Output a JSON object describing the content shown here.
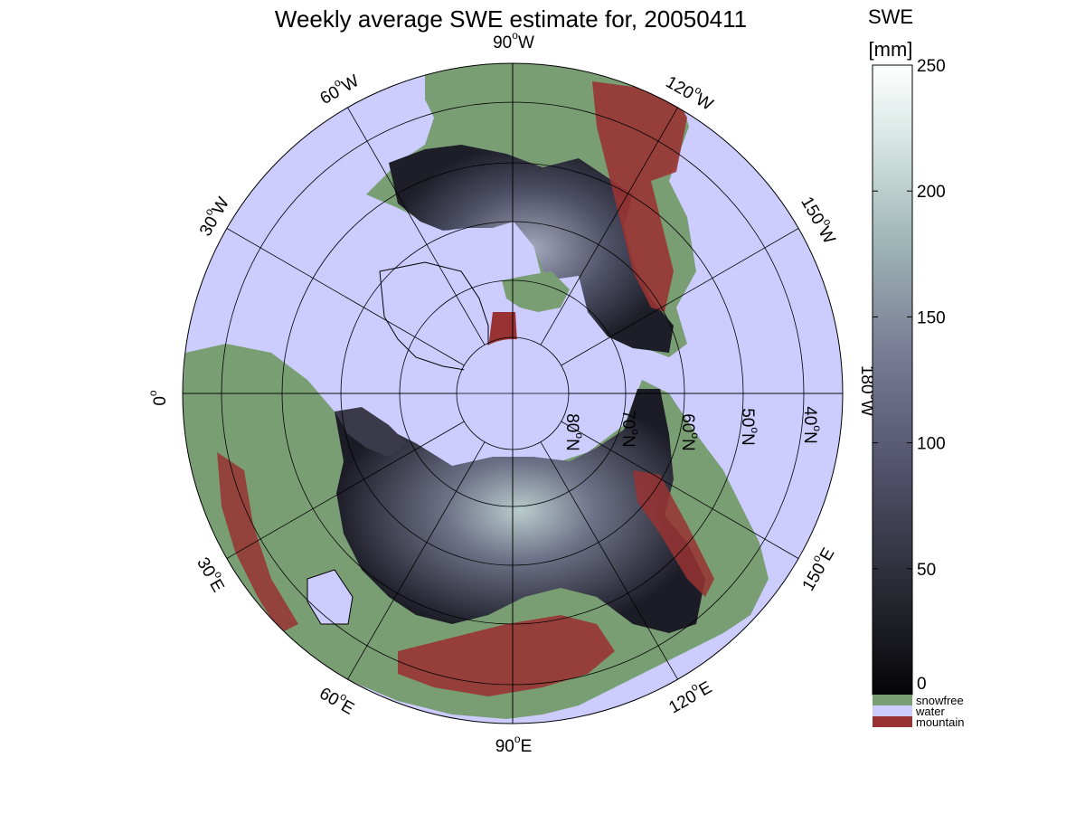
{
  "title": "Weekly average SWE estimate for, 20050411",
  "colors": {
    "water": "#ccccff",
    "snowfree": "#7a9e74",
    "mountain": "#993333",
    "coast": "#000000"
  },
  "longitude_labels": [
    {
      "id": "lon-90w",
      "base": "90",
      "suffix": "W"
    },
    {
      "id": "lon-120w",
      "base": "120",
      "suffix": "W"
    },
    {
      "id": "lon-150w",
      "base": "150",
      "suffix": "W"
    },
    {
      "id": "lon-180w",
      "base": "180",
      "suffix": "W"
    },
    {
      "id": "lon-150e",
      "base": "150",
      "suffix": "E"
    },
    {
      "id": "lon-120e",
      "base": "120",
      "suffix": "E"
    },
    {
      "id": "lon-90e",
      "base": "90",
      "suffix": "E"
    },
    {
      "id": "lon-60e",
      "base": "60",
      "suffix": "E"
    },
    {
      "id": "lon-30e",
      "base": "30",
      "suffix": "E"
    },
    {
      "id": "lon-0",
      "base": "0",
      "suffix": ""
    },
    {
      "id": "lon-30w",
      "base": "30",
      "suffix": "W"
    },
    {
      "id": "lon-60w",
      "base": "60",
      "suffix": "W"
    }
  ],
  "latitude_labels": [
    {
      "id": "lat-80n",
      "base": "80",
      "suffix": "N"
    },
    {
      "id": "lat-70n",
      "base": "70",
      "suffix": "N"
    },
    {
      "id": "lat-60n",
      "base": "60",
      "suffix": "N"
    },
    {
      "id": "lat-50n",
      "base": "50",
      "suffix": "N"
    },
    {
      "id": "lat-40n",
      "base": "40",
      "suffix": "N"
    }
  ],
  "colorbar": {
    "title_line1": "SWE",
    "title_line2": "[mm]",
    "min": 0,
    "max": 250,
    "ticks": [
      "0",
      "50",
      "100",
      "150",
      "200",
      "250"
    ],
    "tick_values": [
      0,
      50,
      100,
      150,
      200,
      250
    ],
    "gradient_low": "#0a0a0f",
    "gradient_mid": "#6a6a88",
    "gradient_high": "#ffffff"
  },
  "legend": [
    {
      "id": "legend-snowfree",
      "label": "snowfree",
      "color": "#7a9e74"
    },
    {
      "id": "legend-water",
      "label": "water",
      "color": "#ccccff"
    },
    {
      "id": "legend-mountain",
      "label": "mountain",
      "color": "#993333"
    }
  ]
}
